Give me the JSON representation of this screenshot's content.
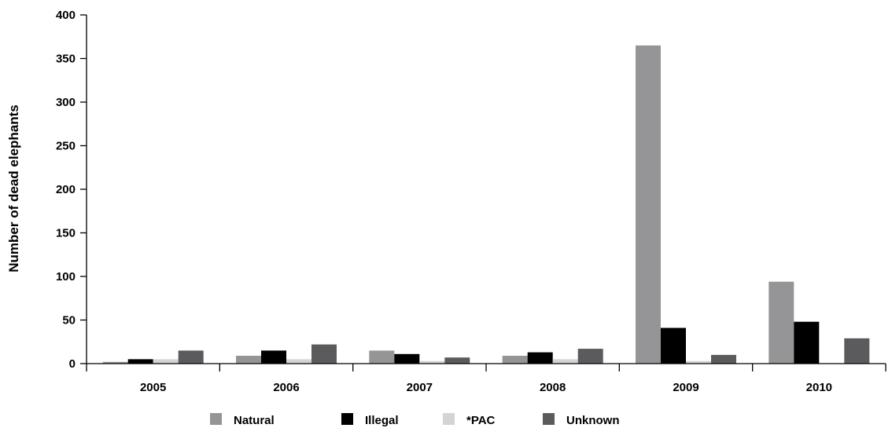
{
  "chart_data": {
    "type": "bar",
    "title": "",
    "xlabel": "",
    "ylabel": "Number of dead elephants",
    "ylim": [
      0,
      400
    ],
    "yticks": [
      0,
      50,
      100,
      150,
      200,
      250,
      300,
      350,
      400
    ],
    "grid": false,
    "legend_position": "bottom",
    "categories": [
      "2005",
      "2006",
      "2007",
      "2008",
      "2009",
      "2010"
    ],
    "series": [
      {
        "name": "Natural",
        "color": "#959597",
        "values": [
          2,
          9,
          15,
          9,
          365,
          94
        ]
      },
      {
        "name": "Illegal",
        "color": "#000000",
        "values": [
          5,
          15,
          11,
          13,
          41,
          48
        ]
      },
      {
        "name": "*PAC",
        "color": "#d4d4d6",
        "values": [
          5,
          5,
          3,
          5,
          3,
          0
        ]
      },
      {
        "name": "Unknown",
        "color": "#5b5b5d",
        "values": [
          15,
          22,
          7,
          17,
          10,
          29
        ]
      }
    ]
  }
}
